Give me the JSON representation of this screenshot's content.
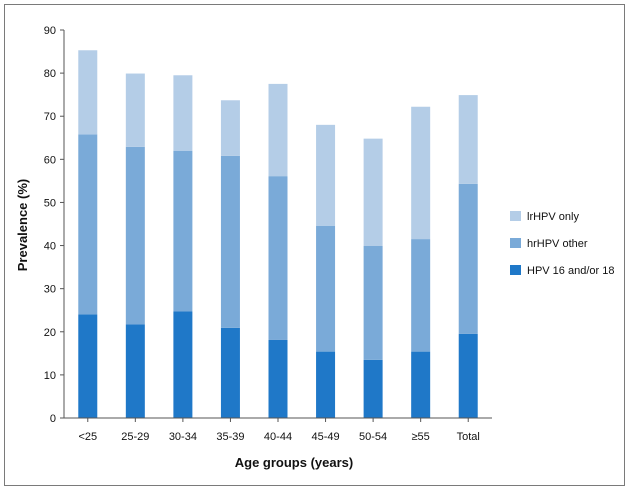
{
  "chart_data": {
    "type": "bar",
    "stacked": true,
    "title": "",
    "xlabel": "Age groups (years)",
    "ylabel": "Prevalence (%)",
    "ylim": [
      0,
      90
    ],
    "yticks": [
      "0",
      "10",
      "20",
      "30",
      "40",
      "50",
      "60",
      "70",
      "80",
      "90"
    ],
    "categories": [
      "<25",
      "25-29",
      "30-34",
      "35-39",
      "40-44",
      "45-49",
      "50-54",
      "≥55",
      "Total"
    ],
    "series": [
      {
        "name": "HPV 16 and/or 18",
        "color": "#1f78c8",
        "values": [
          24,
          21.7,
          24.7,
          20.9,
          18.1,
          15.4,
          13.5,
          15.4,
          19.5
        ]
      },
      {
        "name": "hrHPV other",
        "color": "#7aaad8",
        "values": [
          41.8,
          41.2,
          37.3,
          39.9,
          38,
          29.2,
          26.4,
          26.1,
          34.8
        ]
      },
      {
        "name": "lrHPV only",
        "color": "#b4cde7",
        "values": [
          19.5,
          17,
          17.5,
          12.9,
          21.4,
          23.4,
          24.9,
          30.7,
          20.6
        ]
      }
    ],
    "legend_order": [
      "lrHPV only",
      "hrHPV other",
      "HPV 16 and/or 18"
    ],
    "legend_position": "right",
    "grid": false
  }
}
